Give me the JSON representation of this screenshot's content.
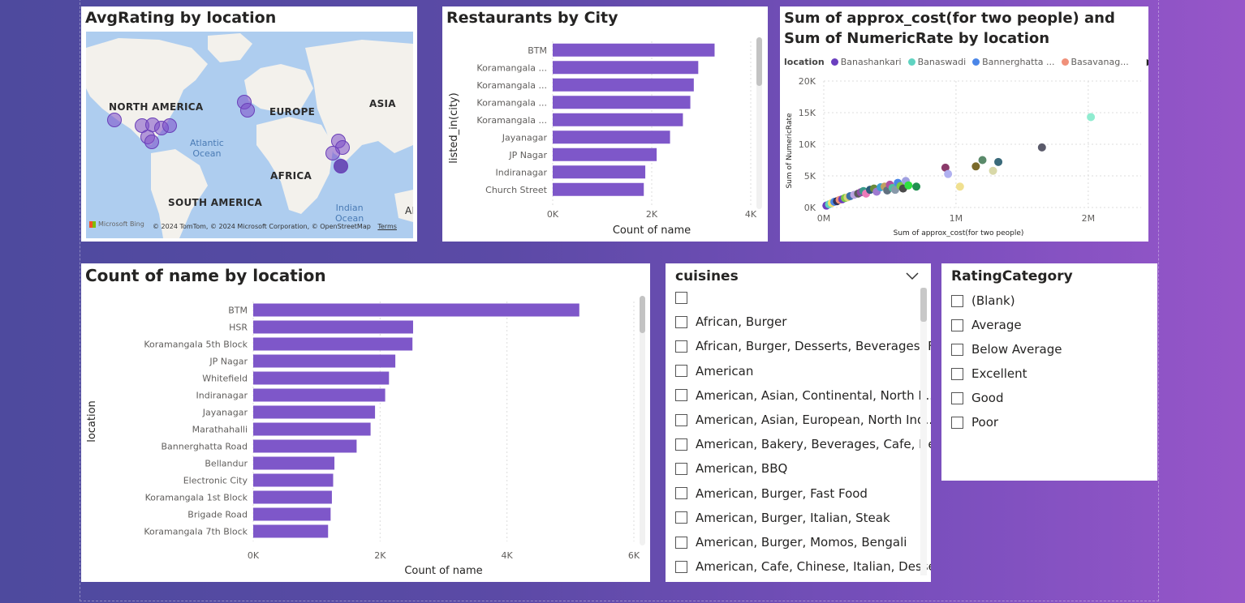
{
  "map_visual": {
    "title": "AvgRating by location",
    "continents": [
      "NORTH AMERICA",
      "EUROPE",
      "ASIA",
      "AFRICA",
      "SOUTH AMERICA"
    ],
    "oceans": [
      "Atlantic\nOcean",
      "Indian\nOcean"
    ],
    "edge_label": "AI",
    "attribution": "© 2024 TomTom, © 2024 Microsoft Corporation, © OpenStreetMap",
    "terms": "Terms",
    "logo": "Microsoft Bing",
    "bubble_color": "#7c4dc9"
  },
  "city_chart": {
    "chart_data": {
      "type": "bar",
      "orientation": "horizontal",
      "title": "Restaurants by City",
      "xlabel": "Count of name",
      "ylabel": "listed_in(city)",
      "categories": [
        "BTM",
        "Koramangala ...",
        "Koramangala ...",
        "Koramangala ...",
        "Koramangala ...",
        "Jayanagar",
        "JP Nagar",
        "Indiranagar",
        "Church Street"
      ],
      "values": [
        3270,
        2940,
        2850,
        2780,
        2630,
        2370,
        2100,
        1870,
        1840
      ],
      "xlim": [
        0,
        4000
      ],
      "xticks": [
        "0K",
        "2K",
        "4K"
      ],
      "bar_color": "#7e57c9",
      "grid": true
    }
  },
  "scatter_chart": {
    "chart_data": {
      "type": "scatter",
      "title": "Sum of approx_cost(for two people) and Sum of NumericRate by location",
      "legend_title": "location",
      "legend": [
        {
          "name": "Banashankari",
          "color": "#6b3fbf"
        },
        {
          "name": "Banaswadi",
          "color": "#5fd3c1"
        },
        {
          "name": "Bannerghatta ...",
          "color": "#4a86e8"
        },
        {
          "name": "Basavanag...",
          "color": "#f0907a"
        }
      ],
      "xlabel": "Sum of approx_cost(for two people)",
      "ylabel": "Sum of NumericRate",
      "xticks": [
        "0M",
        "1M",
        "2M"
      ],
      "yticks": [
        "0K",
        "5K",
        "10K",
        "15K",
        "20K"
      ],
      "xlim": [
        0,
        2400000
      ],
      "ylim": [
        0,
        20000
      ],
      "points": [
        {
          "x": 20000,
          "y": 300,
          "c": "#6b3fbf"
        },
        {
          "x": 40000,
          "y": 500,
          "c": "#5fd3c1"
        },
        {
          "x": 60000,
          "y": 700,
          "c": "#f0e070"
        },
        {
          "x": 80000,
          "y": 900,
          "c": "#4a86e8"
        },
        {
          "x": 100000,
          "y": 1000,
          "c": "#333355"
        },
        {
          "x": 120000,
          "y": 1200,
          "c": "#f0907a"
        },
        {
          "x": 140000,
          "y": 1300,
          "c": "#6b3fbf"
        },
        {
          "x": 160000,
          "y": 1500,
          "c": "#7acc40"
        },
        {
          "x": 180000,
          "y": 1600,
          "c": "#d9d37a"
        },
        {
          "x": 200000,
          "y": 1800,
          "c": "#3d6fa8"
        },
        {
          "x": 230000,
          "y": 2000,
          "c": "#b9a3e0"
        },
        {
          "x": 260000,
          "y": 2200,
          "c": "#5a5a5a"
        },
        {
          "x": 280000,
          "y": 2400,
          "c": "#8a4fa3"
        },
        {
          "x": 300000,
          "y": 2600,
          "c": "#3a9a8a"
        },
        {
          "x": 320000,
          "y": 2200,
          "c": "#ec7ab8"
        },
        {
          "x": 350000,
          "y": 2800,
          "c": "#2a5a7a"
        },
        {
          "x": 380000,
          "y": 3000,
          "c": "#6a8a3a"
        },
        {
          "x": 400000,
          "y": 2500,
          "c": "#9e7ad0"
        },
        {
          "x": 430000,
          "y": 3200,
          "c": "#3da0d0"
        },
        {
          "x": 460000,
          "y": 3300,
          "c": "#c0a060"
        },
        {
          "x": 480000,
          "y": 2700,
          "c": "#607080"
        },
        {
          "x": 500000,
          "y": 3600,
          "c": "#b050a0"
        },
        {
          "x": 520000,
          "y": 3100,
          "c": "#50c0a0"
        },
        {
          "x": 540000,
          "y": 2800,
          "c": "#8899aa"
        },
        {
          "x": 560000,
          "y": 3900,
          "c": "#4a86e8"
        },
        {
          "x": 580000,
          "y": 3400,
          "c": "#7acc40"
        },
        {
          "x": 600000,
          "y": 3000,
          "c": "#4a4a4a"
        },
        {
          "x": 620000,
          "y": 4200,
          "c": "#a0a0e0"
        },
        {
          "x": 640000,
          "y": 3500,
          "c": "#30e040"
        },
        {
          "x": 700000,
          "y": 3300,
          "c": "#209050"
        },
        {
          "x": 920000,
          "y": 6300,
          "c": "#8a3a6a"
        },
        {
          "x": 940000,
          "y": 5300,
          "c": "#b0b0f0"
        },
        {
          "x": 1030000,
          "y": 3300,
          "c": "#f0e090"
        },
        {
          "x": 1150000,
          "y": 6500,
          "c": "#7a6a2a"
        },
        {
          "x": 1200000,
          "y": 7500,
          "c": "#5a8a6a"
        },
        {
          "x": 1280000,
          "y": 5800,
          "c": "#d8d8a8"
        },
        {
          "x": 1320000,
          "y": 7200,
          "c": "#3a6a7a"
        },
        {
          "x": 1650000,
          "y": 9500,
          "c": "#5a5a6a"
        },
        {
          "x": 2020000,
          "y": 14300,
          "c": "#90ecd0"
        }
      ],
      "grid": true
    }
  },
  "location_chart": {
    "chart_data": {
      "type": "bar",
      "orientation": "horizontal",
      "title": "Count of name by location",
      "xlabel": "Count of name",
      "ylabel": "location",
      "categories": [
        "BTM",
        "HSR",
        "Koramangala 5th Block",
        "JP Nagar",
        "Whitefield",
        "Indiranagar",
        "Jayanagar",
        "Marathahalli",
        "Bannerghatta Road",
        "Bellandur",
        "Electronic City",
        "Koramangala 1st Block",
        "Brigade Road",
        "Koramangala 7th Block"
      ],
      "values": [
        5140,
        2520,
        2510,
        2240,
        2140,
        2080,
        1920,
        1850,
        1630,
        1280,
        1260,
        1240,
        1220,
        1180
      ],
      "xlim": [
        0,
        6000
      ],
      "xticks": [
        "0K",
        "2K",
        "4K",
        "6K"
      ],
      "bar_color": "#7e57c9",
      "grid": true
    }
  },
  "cuisines_slicer": {
    "title": "cuisines",
    "items": [
      "",
      "African, Burger",
      "African, Burger, Desserts, Beverages, F...",
      "American",
      "American, Asian, Continental, North I...",
      "American, Asian, European, North Ind...",
      "American, Bakery, Beverages, Cafe, He...",
      "American, BBQ",
      "American, Burger, Fast Food",
      "American, Burger, Italian, Steak",
      "American, Burger, Momos, Bengali",
      "American, Cafe, Chinese, Italian, Desse..."
    ]
  },
  "rating_slicer": {
    "title": "RatingCategory",
    "items": [
      "(Blank)",
      "Average",
      "Below Average",
      "Excellent",
      "Good",
      "Poor"
    ]
  }
}
